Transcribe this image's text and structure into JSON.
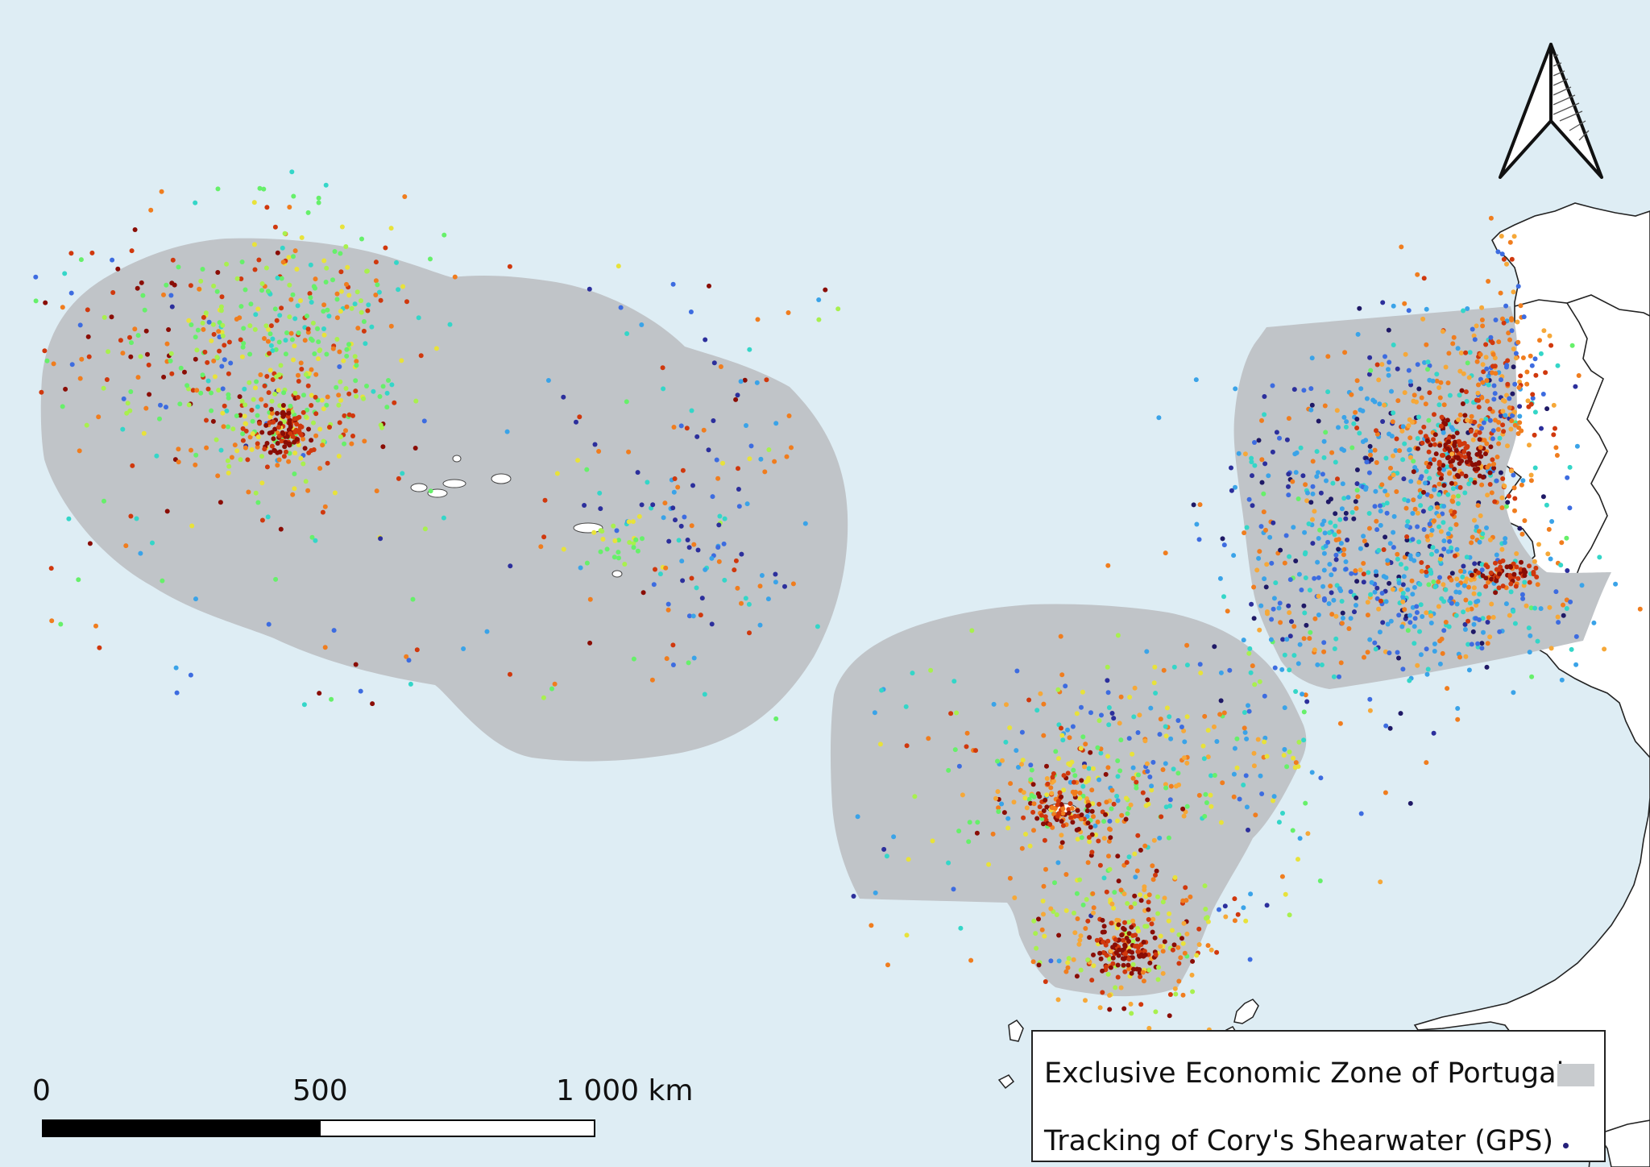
{
  "colors": {
    "ocean": "#deedf4",
    "eez_fill": "#c0c4c8",
    "land": "#ffffff",
    "gps_dot": "#25207a"
  },
  "icons": {
    "north_arrow": "north-arrow-icon"
  },
  "map_layers": {
    "eez_regions": [
      "Azores",
      "Madeira",
      "Mainland"
    ],
    "point_palette": "jet (blue → green → yellow → orange → dark red)"
  },
  "scale_bar": {
    "labels": [
      "0",
      "500",
      "1 000 km"
    ]
  },
  "legend": {
    "eez_label": "Exclusive Economic Zone of Portugal",
    "tracking_label": "Tracking of Cory's Shearwater (GPS)"
  }
}
